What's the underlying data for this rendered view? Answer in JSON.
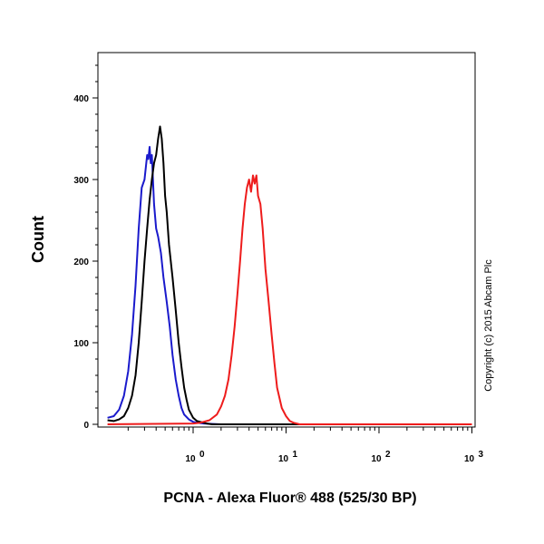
{
  "chart_data": {
    "type": "line",
    "title": "",
    "xlabel": "PCNA - Alexa Fluor® 488 (525/30 BP)",
    "ylabel": "Count",
    "x_scale": "log",
    "xlim": [
      0.12,
      1000
    ],
    "ylim": [
      0,
      450
    ],
    "x_ticks": [
      {
        "value": 1,
        "base": "10",
        "exp": "0"
      },
      {
        "value": 10,
        "base": "10",
        "exp": "1"
      },
      {
        "value": 100,
        "base": "10",
        "exp": "2"
      },
      {
        "value": 1000,
        "base": "10",
        "exp": "3"
      }
    ],
    "y_ticks": [
      {
        "value": 0,
        "label": "0"
      },
      {
        "value": 100,
        "label": "100"
      },
      {
        "value": 200,
        "label": "200"
      },
      {
        "value": 300,
        "label": "300"
      },
      {
        "value": 400,
        "label": "400"
      }
    ],
    "grid": false,
    "legend": "none",
    "series": [
      {
        "color": "#1a1acc",
        "x": [
          0.12,
          0.14,
          0.16,
          0.18,
          0.2,
          0.22,
          0.24,
          0.26,
          0.28,
          0.3,
          0.32,
          0.33,
          0.34,
          0.35,
          0.36,
          0.37,
          0.38,
          0.4,
          0.42,
          0.45,
          0.48,
          0.52,
          0.56,
          0.6,
          0.65,
          0.7,
          0.75,
          0.8,
          0.9,
          1.0,
          1.1,
          1.3,
          2.0,
          1000
        ],
        "y": [
          8,
          10,
          18,
          35,
          65,
          110,
          170,
          240,
          290,
          300,
          330,
          325,
          340,
          320,
          330,
          300,
          270,
          240,
          230,
          210,
          180,
          150,
          120,
          85,
          55,
          35,
          20,
          12,
          6,
          3,
          2,
          1,
          0,
          0
        ]
      },
      {
        "color": "#000000",
        "x": [
          0.12,
          0.14,
          0.16,
          0.18,
          0.2,
          0.22,
          0.24,
          0.26,
          0.28,
          0.3,
          0.32,
          0.34,
          0.36,
          0.38,
          0.4,
          0.42,
          0.44,
          0.46,
          0.48,
          0.5,
          0.52,
          0.55,
          0.6,
          0.65,
          0.7,
          0.75,
          0.8,
          0.85,
          0.9,
          1.0,
          1.1,
          1.2,
          1.4,
          1.6,
          2.0,
          1000
        ],
        "y": [
          5,
          4,
          6,
          10,
          20,
          35,
          60,
          100,
          150,
          200,
          240,
          275,
          300,
          320,
          330,
          350,
          365,
          350,
          320,
          280,
          260,
          220,
          180,
          140,
          100,
          70,
          45,
          30,
          18,
          8,
          4,
          3,
          1,
          0,
          0,
          0
        ]
      },
      {
        "color": "#ee1c1c",
        "x": [
          0.12,
          1.0,
          1.2,
          1.5,
          1.8,
          2.0,
          2.2,
          2.4,
          2.6,
          2.8,
          3.0,
          3.2,
          3.4,
          3.6,
          3.8,
          4.0,
          4.2,
          4.4,
          4.6,
          4.8,
          5.0,
          5.3,
          5.6,
          6.0,
          6.5,
          7.0,
          7.5,
          8.0,
          9.0,
          10.0,
          11.0,
          12.0,
          14.0,
          1000
        ],
        "y": [
          0,
          1,
          2,
          5,
          12,
          22,
          35,
          55,
          85,
          120,
          160,
          200,
          240,
          270,
          290,
          300,
          285,
          305,
          295,
          305,
          280,
          270,
          240,
          190,
          150,
          110,
          75,
          45,
          20,
          10,
          4,
          2,
          0,
          0
        ]
      }
    ]
  },
  "copyright": "Copyright (c) 2015 Abcam Plc"
}
